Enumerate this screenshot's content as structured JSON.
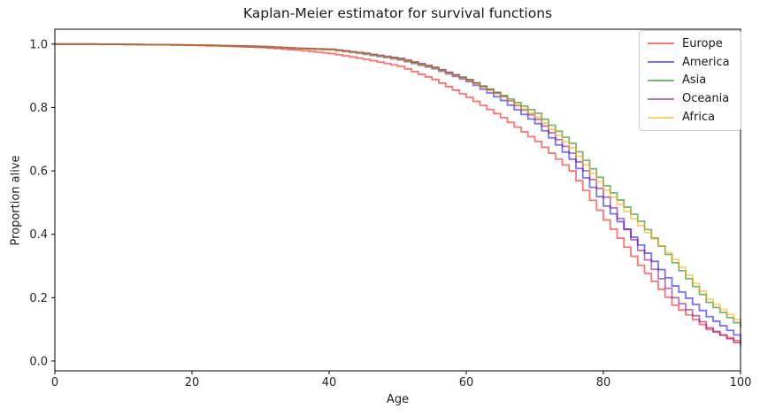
{
  "figure": {
    "title": "Kaplan-Meier estimator for survival functions",
    "xlabel": "Age",
    "ylabel": "Proportion alive"
  },
  "chart_data": {
    "type": "line",
    "subtype": "kaplan-meier-step",
    "title": "Kaplan-Meier estimator for survival functions",
    "xlabel": "Age",
    "ylabel": "Proportion alive",
    "xlim": [
      0,
      100
    ],
    "ylim": [
      -0.031,
      1.047
    ],
    "x_ticks": [
      0,
      20,
      40,
      60,
      80,
      100
    ],
    "x_tick_labels": [
      "0",
      "20",
      "40",
      "60",
      "80",
      "100"
    ],
    "y_ticks": [
      0.0,
      0.2,
      0.4,
      0.6,
      0.8,
      1.0
    ],
    "y_tick_labels": [
      "0.0",
      "0.2",
      "0.4",
      "0.6",
      "0.8",
      "1.0"
    ],
    "grid": false,
    "legend_position": "upper right",
    "line_opacity": 0.55,
    "line_width": 1.8,
    "axis_color": "#000000",
    "ages": [
      0,
      5,
      10,
      15,
      20,
      25,
      30,
      35,
      40,
      45,
      50,
      55,
      60,
      65,
      70,
      75,
      80,
      85,
      90,
      95,
      100
    ],
    "series": [
      {
        "name": "Europe",
        "color": "#ff0000",
        "values": [
          1.0,
          1.0,
          0.999,
          0.998,
          0.996,
          0.993,
          0.989,
          0.981,
          0.97,
          0.952,
          0.93,
          0.888,
          0.832,
          0.768,
          0.693,
          0.6,
          0.445,
          0.302,
          0.176,
          0.1,
          0.056
        ]
      },
      {
        "name": "America",
        "color": "#0000ff",
        "values": [
          1.0,
          1.0,
          0.999,
          0.998,
          0.997,
          0.994,
          0.991,
          0.986,
          0.982,
          0.968,
          0.95,
          0.922,
          0.882,
          0.822,
          0.749,
          0.637,
          0.489,
          0.366,
          0.237,
          0.14,
          0.068
        ]
      },
      {
        "name": "Asia",
        "color": "#008000",
        "values": [
          1.0,
          1.0,
          0.999,
          0.998,
          0.997,
          0.995,
          0.992,
          0.987,
          0.983,
          0.97,
          0.953,
          0.925,
          0.888,
          0.838,
          0.782,
          0.687,
          0.553,
          0.441,
          0.31,
          0.185,
          0.105
        ]
      },
      {
        "name": "Oceania",
        "color": "#800080",
        "values": [
          1.0,
          1.0,
          0.999,
          0.998,
          0.997,
          0.995,
          0.993,
          0.987,
          0.984,
          0.971,
          0.955,
          0.927,
          0.887,
          0.835,
          0.763,
          0.656,
          0.517,
          0.349,
          0.2,
          0.105,
          0.047
        ]
      },
      {
        "name": "Africa",
        "color": "#ffa500",
        "values": [
          1.0,
          1.0,
          0.999,
          0.998,
          0.997,
          0.994,
          0.992,
          0.986,
          0.982,
          0.969,
          0.951,
          0.923,
          0.885,
          0.833,
          0.77,
          0.673,
          0.539,
          0.427,
          0.321,
          0.195,
          0.115
        ]
      }
    ]
  }
}
